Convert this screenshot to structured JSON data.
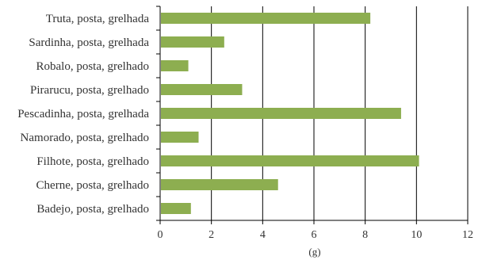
{
  "chart_data": {
    "type": "bar",
    "orientation": "horizontal",
    "categories": [
      "Truta, posta, grelhada",
      "Sardinha, posta, grelhada",
      "Robalo, posta, grelhado",
      "Pirarucu, posta, grelhado",
      "Pescadinha, posta, grelhada",
      "Namorado, posta, grelhado",
      "Filhote, posta, grelhado",
      "Cherne, posta, grelhado",
      "Badejo, posta, grelhado"
    ],
    "values": [
      8.2,
      2.5,
      1.1,
      3.2,
      9.4,
      1.5,
      10.1,
      4.6,
      1.2
    ],
    "xlabel": "(g)",
    "xlim": [
      0,
      12
    ],
    "xticks": [
      "0",
      "2",
      "4",
      "6",
      "8",
      "10",
      "12"
    ],
    "grid": "vertical",
    "bar_color": "#8dae50",
    "axis_color": "#000000"
  }
}
